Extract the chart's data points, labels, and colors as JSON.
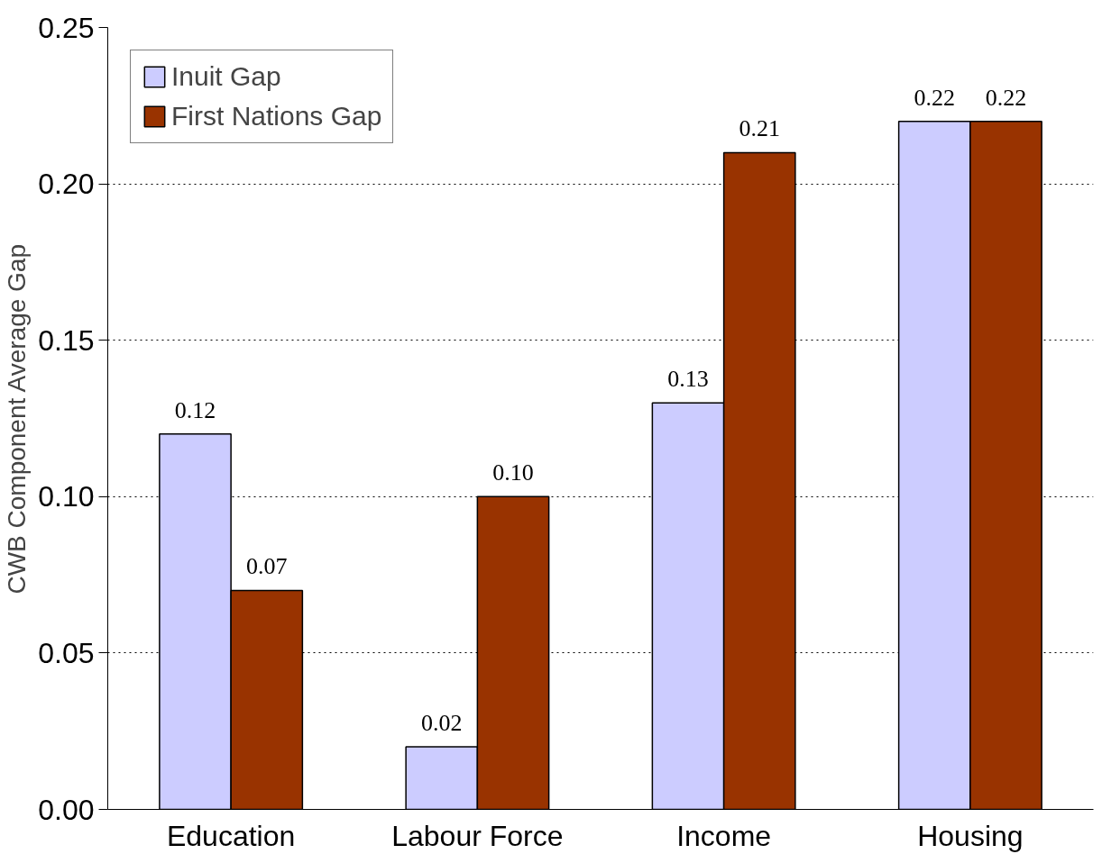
{
  "chart_data": {
    "type": "bar",
    "ylabel": "CWB Component Average Gap",
    "categories": [
      "Education",
      "Labour Force",
      "Income",
      "Housing"
    ],
    "series": [
      {
        "name": "Inuit Gap",
        "color": "#ccccff",
        "values": [
          0.12,
          0.02,
          0.13,
          0.22
        ],
        "value_labels": [
          "0.12",
          "0.02",
          "0.13",
          "0.22"
        ]
      },
      {
        "name": "First Nations Gap",
        "color": "#993300",
        "values": [
          0.07,
          0.1,
          0.21,
          0.22
        ],
        "value_labels": [
          "0.07",
          "0.10",
          "0.21",
          "0.22"
        ]
      }
    ],
    "ylim": [
      0,
      0.25
    ],
    "yticks": [
      {
        "value": 0,
        "label": "0.00"
      },
      {
        "value": 0.05,
        "label": "0.05"
      },
      {
        "value": 0.1,
        "label": "0.10"
      },
      {
        "value": 0.15,
        "label": "0.15"
      },
      {
        "value": 0.2,
        "label": "0.20"
      },
      {
        "value": 0.25,
        "label": "0.25"
      }
    ],
    "grid": "y",
    "legend": "top left"
  }
}
